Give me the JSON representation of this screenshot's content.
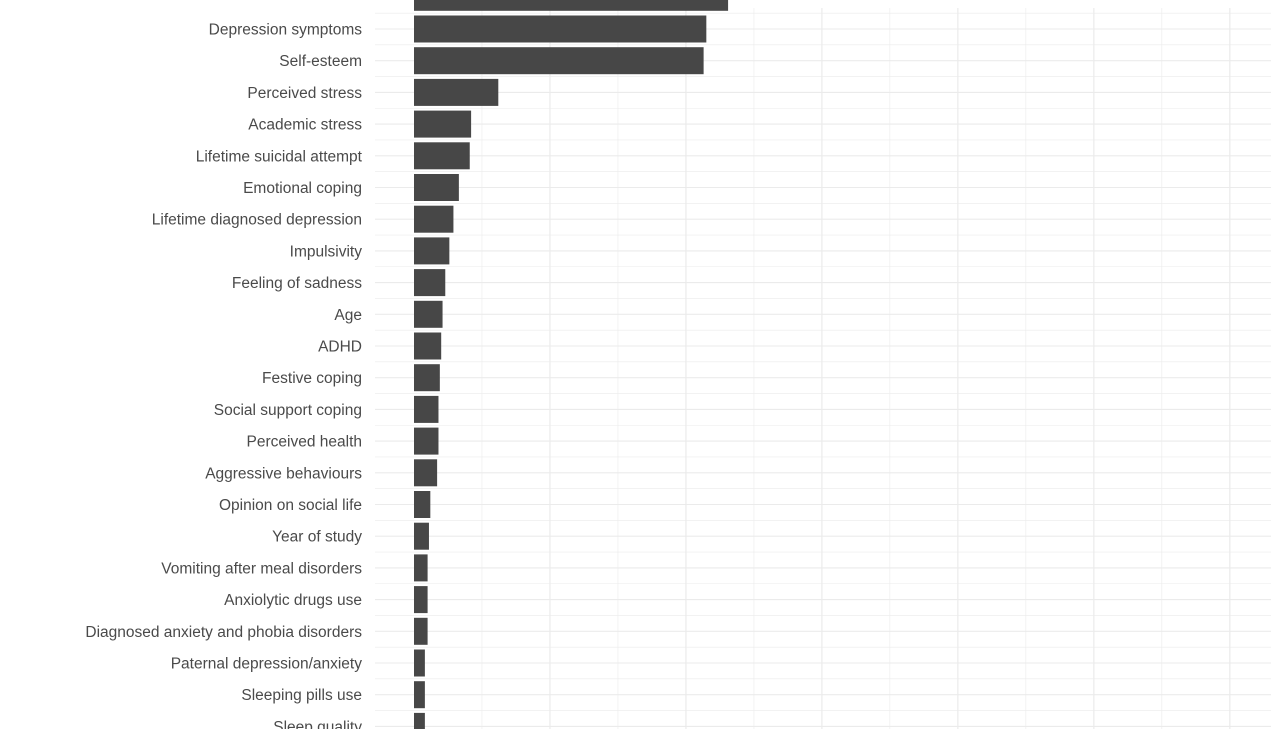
{
  "chart_data": {
    "type": "bar",
    "orientation": "horizontal",
    "categories": [
      "Depression symptoms",
      "Self-esteem",
      "Perceived stress",
      "Academic stress",
      "Lifetime suicidal attempt",
      "Emotional coping",
      "Lifetime diagnosed depression",
      "Impulsivity",
      "Feeling of sadness",
      "Age",
      "ADHD",
      "Festive coping",
      "Social support coping",
      "Perceived health",
      "Aggressive behaviours",
      "Opinion on social life",
      "Year of study",
      "Vomiting after meal disorders",
      "Anxiolytic drugs use",
      "Diagnosed anxiety and phobia disorders",
      "Paternal depression/anxiety",
      "Sleeping pills use",
      "Sleep quality"
    ],
    "values": [
      2.15,
      2.13,
      0.62,
      0.42,
      0.41,
      0.33,
      0.29,
      0.26,
      0.23,
      0.21,
      0.2,
      0.19,
      0.18,
      0.18,
      0.17,
      0.12,
      0.11,
      0.1,
      0.1,
      0.1,
      0.08,
      0.08,
      0.08
    ],
    "partial_top_bar_value": 2.31,
    "title": "",
    "xlabel": "",
    "ylabel": "",
    "xlim": [
      0,
      6.2
    ],
    "grid": true,
    "legend": "none",
    "colors": {
      "bar": "#474747",
      "grid": "#ebebeb",
      "label": "#4a4a4a",
      "background": "#ffffff"
    }
  }
}
